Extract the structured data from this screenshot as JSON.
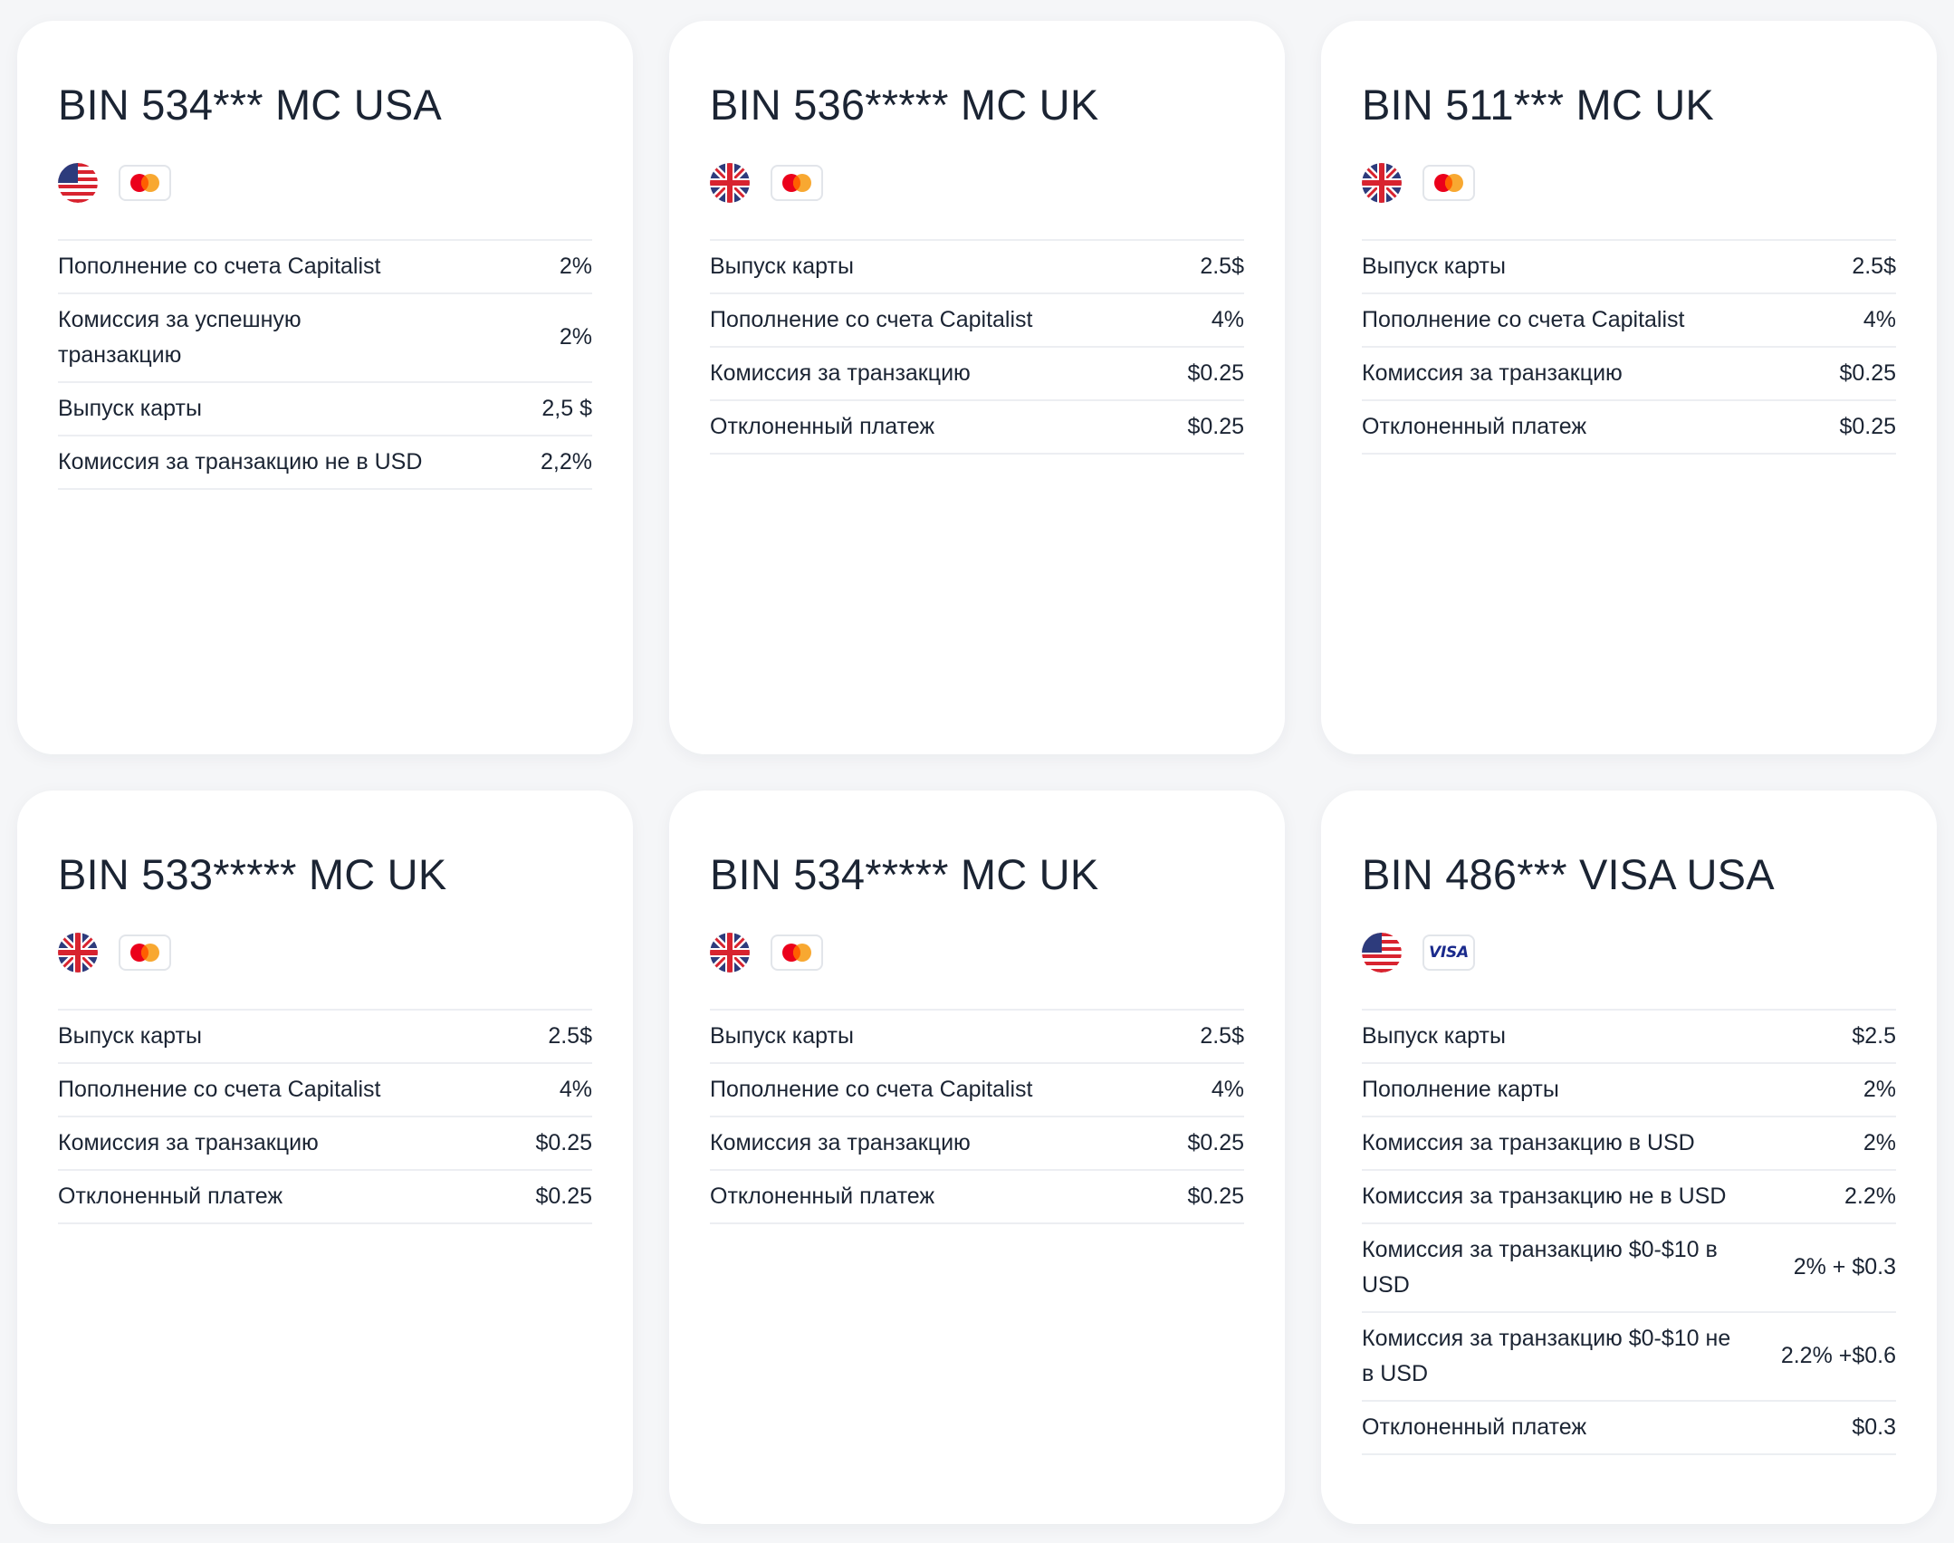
{
  "cards": [
    {
      "title": "BIN 534*** MC USA",
      "flag": "us-flag-icon",
      "brand": "mastercard-icon",
      "rows": [
        {
          "label": "Пополнение со счета Capitalist",
          "value": "2%"
        },
        {
          "label": "Комиссия за успешную транзакцию",
          "value": "2%"
        },
        {
          "label": "Выпуск карты",
          "value": "2,5 $"
        },
        {
          "label": "Комиссия за транзакцию не в USD",
          "value": "2,2%"
        }
      ]
    },
    {
      "title": "BIN 536***** MC UK",
      "flag": "uk-flag-icon",
      "brand": "mastercard-icon",
      "rows": [
        {
          "label": "Выпуск карты",
          "value": "2.5$"
        },
        {
          "label": "Пополнение со счета Capitalist",
          "value": "4%"
        },
        {
          "label": "Комиссия за транзакцию",
          "value": "$0.25"
        },
        {
          "label": "Отклоненный платеж",
          "value": "$0.25"
        }
      ]
    },
    {
      "title": "BIN 511*** MC UK",
      "flag": "uk-flag-icon",
      "brand": "mastercard-icon",
      "rows": [
        {
          "label": "Выпуск карты",
          "value": "2.5$"
        },
        {
          "label": "Пополнение со счета Capitalist",
          "value": "4%"
        },
        {
          "label": "Комиссия за транзакцию",
          "value": "$0.25"
        },
        {
          "label": "Отклоненный платеж",
          "value": "$0.25"
        }
      ]
    },
    {
      "title": "BIN 533***** MC UK",
      "flag": "uk-flag-icon",
      "brand": "mastercard-icon",
      "rows": [
        {
          "label": "Выпуск карты",
          "value": "2.5$"
        },
        {
          "label": "Пополнение со счета Capitalist",
          "value": "4%"
        },
        {
          "label": "Комиссия за транзакцию",
          "value": "$0.25"
        },
        {
          "label": "Отклоненный платеж",
          "value": "$0.25"
        }
      ]
    },
    {
      "title": "BIN 534***** MC UK",
      "flag": "uk-flag-icon",
      "brand": "mastercard-icon",
      "rows": [
        {
          "label": "Выпуск карты",
          "value": "2.5$"
        },
        {
          "label": "Пополнение со счета Capitalist",
          "value": "4%"
        },
        {
          "label": "Комиссия за транзакцию",
          "value": "$0.25"
        },
        {
          "label": "Отклоненный платеж",
          "value": "$0.25"
        }
      ]
    },
    {
      "title": "BIN 486*** VISA USA",
      "flag": "us-flag-icon",
      "brand": "visa-icon",
      "brand_text": "VISA",
      "rows": [
        {
          "label": "Выпуск карты",
          "value": "$2.5"
        },
        {
          "label": "Пополнение карты",
          "value": "2%"
        },
        {
          "label": "Комиссия за транзакцию в USD",
          "value": "2%"
        },
        {
          "label": "Комиссия за транзакцию не в USD",
          "value": "2.2%"
        },
        {
          "label": "Комиссия за транзакцию $0-$10 в USD",
          "value": "2% + $0.3"
        },
        {
          "label": "Комиссия за транзакцию $0-$10 не в USD",
          "value": "2.2% +$0.6"
        },
        {
          "label": "Отклоненный платеж",
          "value": "$0.3"
        }
      ]
    }
  ],
  "colors": {
    "background": "#f5f6f8",
    "card": "#ffffff",
    "text": "#1b2433",
    "divider": "#eceef2",
    "mastercard_red": "#eb001b",
    "mastercard_orange": "#f79e1b",
    "visa_blue": "#1a2a8c"
  }
}
